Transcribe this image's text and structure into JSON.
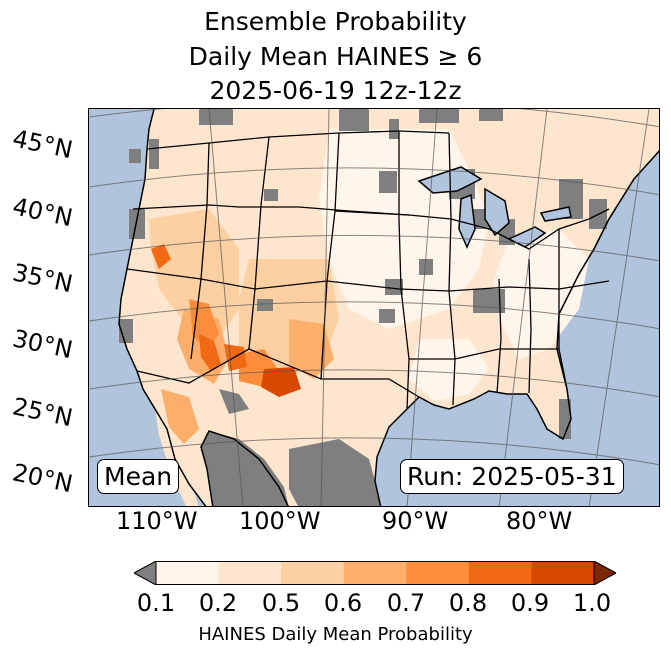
{
  "title": {
    "line1": "Ensemble Probability",
    "line2": "Daily Mean HAINES ≥ 6",
    "line3": "2025-06-19 12z-12z"
  },
  "map": {
    "lat_labels": [
      "45°N",
      "40°N",
      "35°N",
      "30°N",
      "25°N",
      "20°N"
    ],
    "lon_labels": [
      "110°W",
      "100°W",
      "90°W",
      "80°W"
    ],
    "mean_label": "Mean",
    "run_label": "Run: 2025-05-31",
    "colors": {
      "ocean": "#b0c4de",
      "land_low": "#fff5eb",
      "masked": "#7f7f7f"
    }
  },
  "colorbar": {
    "label": "HAINES Daily Mean Probability",
    "ticks": [
      "0.1",
      "0.2",
      "0.5",
      "0.6",
      "0.7",
      "0.8",
      "0.9",
      "1.0"
    ],
    "colors": [
      "#fff5eb",
      "#fee6ce",
      "#fdd0a2",
      "#fdae6b",
      "#fd8d3c",
      "#f16913",
      "#d94801",
      "#a63603"
    ],
    "under_color": "#7f7f7f",
    "over_color": "#7f2704"
  }
}
